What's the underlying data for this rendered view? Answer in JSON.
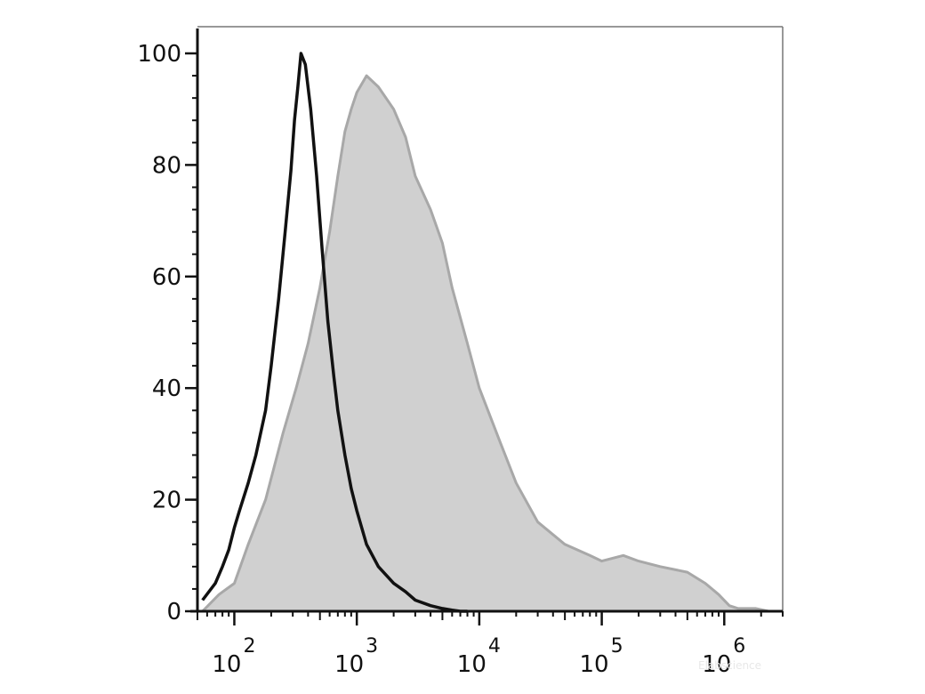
{
  "chart_data": {
    "type": "area",
    "title": "",
    "xlabel": "",
    "ylabel": "",
    "x_scale": "log",
    "xlim": [
      50,
      3000000
    ],
    "ylim": [
      0,
      100
    ],
    "grid": false,
    "y_ticks": [
      {
        "value": 0,
        "label": "0"
      },
      {
        "value": 20,
        "label": "20"
      },
      {
        "value": 40,
        "label": "40"
      },
      {
        "value": 60,
        "label": "60"
      },
      {
        "value": 80,
        "label": "80"
      },
      {
        "value": 100,
        "label": "100"
      }
    ],
    "x_ticks": [
      {
        "value": 100,
        "base": "10",
        "exp": "2"
      },
      {
        "value": 1000,
        "base": "10",
        "exp": "3"
      },
      {
        "value": 10000,
        "base": "10",
        "exp": "4"
      },
      {
        "value": 100000,
        "base": "10",
        "exp": "5"
      },
      {
        "value": 1000000,
        "base": "10",
        "exp": "6"
      }
    ],
    "series": [
      {
        "style": "filled",
        "fill_color": "#d0d0d0",
        "stroke_color": "#a8a8a8",
        "x": [
          55,
          75,
          100,
          130,
          180,
          250,
          320,
          400,
          500,
          600,
          700,
          800,
          900,
          1000,
          1200,
          1500,
          2000,
          2500,
          3000,
          4000,
          5000,
          6000,
          8000,
          10000,
          15000,
          20000,
          30000,
          50000,
          80000,
          100000,
          150000,
          200000,
          300000,
          500000,
          700000,
          900000,
          1100000,
          1300000,
          1800000,
          2300000
        ],
        "y": [
          0,
          3,
          5,
          12,
          20,
          32,
          40,
          48,
          58,
          68,
          78,
          86,
          90,
          93,
          96,
          94,
          90,
          85,
          78,
          72,
          66,
          58,
          48,
          40,
          30,
          23,
          16,
          12,
          10,
          9,
          10,
          9,
          8,
          7,
          5,
          3,
          1,
          0.5,
          0.5,
          0
        ]
      },
      {
        "style": "line",
        "stroke_color": "#111111",
        "x": [
          55,
          70,
          80,
          90,
          100,
          110,
          130,
          150,
          180,
          200,
          230,
          260,
          290,
          310,
          330,
          350,
          380,
          420,
          470,
          520,
          580,
          650,
          700,
          800,
          900,
          1000,
          1200,
          1500,
          2000,
          2500,
          3000,
          4000,
          5000,
          6000,
          7000,
          8000
        ],
        "y": [
          2,
          5,
          8,
          11,
          15,
          18,
          23,
          28,
          36,
          44,
          56,
          68,
          79,
          88,
          94,
          100,
          98,
          90,
          78,
          65,
          52,
          42,
          36,
          28,
          22,
          18,
          12,
          8,
          5,
          3.5,
          2,
          1,
          0.5,
          0.2,
          0,
          0
        ]
      }
    ]
  }
}
